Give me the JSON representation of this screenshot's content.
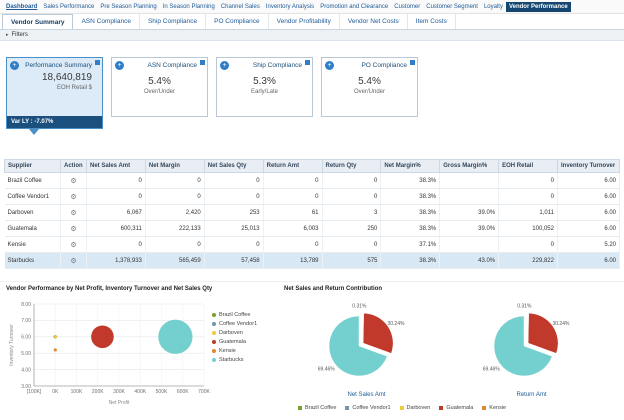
{
  "icons": {
    "filters_arrow": "▸",
    "tile_badge": "+",
    "gear": "⚙"
  },
  "top_nav": {
    "items": [
      {
        "label": "Dashboard",
        "underlined": true
      },
      {
        "label": "Sales Performance"
      },
      {
        "label": "Pre Season Planning"
      },
      {
        "label": "In Season Planning"
      },
      {
        "label": "Channel Sales"
      },
      {
        "label": "Inventory Analysis"
      },
      {
        "label": "Promotion and Clearance"
      },
      {
        "label": "Customer"
      },
      {
        "label": "Customer Segment"
      },
      {
        "label": "Loyalty"
      },
      {
        "label": "Vendor Performance",
        "selected": true
      }
    ]
  },
  "tabs": {
    "items": [
      {
        "label": "Vendor Summary",
        "active": true
      },
      {
        "label": "ASN Compliance"
      },
      {
        "label": "Ship Compliance"
      },
      {
        "label": "PO Compliance"
      },
      {
        "label": "Vendor Profitability"
      },
      {
        "label": "Vendor Net Costs"
      },
      {
        "label": "Item Costs"
      }
    ]
  },
  "filters": {
    "label": "Filters"
  },
  "kpi_tiles": [
    {
      "title": "Performance Summary",
      "value": "18,640,819",
      "subtitle": "EOH Retail $",
      "footer": "Var LY : -7.07%",
      "selected": true
    },
    {
      "title": "ASN Compliance",
      "value": "5.4%",
      "subtitle": "Over/Under"
    },
    {
      "title": "Ship Compliance",
      "value": "5.3%",
      "subtitle": "Early/Late"
    },
    {
      "title": "PO Compliance",
      "value": "5.4%",
      "subtitle": "Over/Under"
    }
  ],
  "table": {
    "columns": [
      "Supplier",
      "Action",
      "Net Sales Amt",
      "Net Margin",
      "Net Sales Qty",
      "Return Amt",
      "Return Qty",
      "Net Margin%",
      "Gross Margin%",
      "EOH Retail",
      "Inventory Turnover"
    ],
    "rows": [
      {
        "supplier": "Brazil Coffee",
        "cells": [
          "0",
          "0",
          "0",
          "0",
          "0",
          "38.3%",
          "",
          "0",
          "6.00"
        ]
      },
      {
        "supplier": "Coffee Vendor1",
        "cells": [
          "0",
          "0",
          "0",
          "0",
          "0",
          "38.3%",
          "",
          "0",
          "6.00"
        ]
      },
      {
        "supplier": "Darboven",
        "cells": [
          "6,067",
          "2,420",
          "253",
          "61",
          "3",
          "38.3%",
          "39.0%",
          "1,011",
          "6.00"
        ]
      },
      {
        "supplier": "Guatemala",
        "cells": [
          "600,311",
          "222,133",
          "25,013",
          "6,003",
          "250",
          "38.3%",
          "39.0%",
          "100,052",
          "6.00"
        ]
      },
      {
        "supplier": "Kensie",
        "cells": [
          "0",
          "0",
          "0",
          "0",
          "0",
          "37.1%",
          "",
          "0",
          "5.20"
        ]
      },
      {
        "supplier": "Starbucks",
        "cells": [
          "1,378,933",
          "565,459",
          "57,458",
          "13,789",
          "575",
          "38.3%",
          "43.0%",
          "229,822",
          "6.00"
        ],
        "selected": true
      }
    ]
  },
  "chart_data": [
    {
      "type": "scatter",
      "title": "Vendor Performance by Net Profit, Inventory Turnover and Net Sales Qty",
      "xlabel": "Net Profit",
      "ylabel": "Inventory Turnover",
      "xlim": [
        -100000,
        700000
      ],
      "ylim": [
        3,
        8
      ],
      "x_ticks": [
        "[100K]",
        "0K",
        "100K",
        "200K",
        "300K",
        "400K",
        "500K",
        "600K",
        "700K"
      ],
      "x_tick_values": [
        -100000,
        0,
        100000,
        200000,
        300000,
        400000,
        500000,
        600000,
        700000
      ],
      "y_ticks": [
        "3.00",
        "4.00",
        "5.00",
        "6.00",
        "7.00",
        "8.00"
      ],
      "grid": true,
      "legend_position": "right",
      "series": [
        {
          "name": "Brazil Coffee",
          "color": "#7aa12f",
          "x": 0,
          "y": 6.0,
          "size": 0
        },
        {
          "name": "Coffee Vendor1",
          "color": "#7295ae",
          "x": 0,
          "y": 6.0,
          "size": 0
        },
        {
          "name": "Darboven",
          "color": "#efc93f",
          "x": 2420,
          "y": 6.0,
          "size": 253
        },
        {
          "name": "Guatemala",
          "color": "#c0392b",
          "x": 222133,
          "y": 6.0,
          "size": 25013
        },
        {
          "name": "Kensie",
          "color": "#e2892f",
          "x": 0,
          "y": 5.2,
          "size": 0
        },
        {
          "name": "Starbucks",
          "color": "#74cfcf",
          "x": 565459,
          "y": 6.0,
          "size": 57458
        }
      ]
    },
    {
      "type": "pie",
      "title": "Net Sales and Return Contribution",
      "legend_position": "bottom",
      "pies": [
        {
          "label": "Net Sales Amt",
          "slices": [
            {
              "name": "Darboven",
              "value": 0.31,
              "pct_label": "0.31%",
              "color": "#efc93f"
            },
            {
              "name": "Guatemala",
              "value": 30.24,
              "pct_label": "30.24%",
              "color": "#c0392b",
              "exploded": true
            },
            {
              "name": "Starbucks",
              "value": 69.46,
              "pct_label": "69.46%",
              "color": "#74cfcf"
            }
          ]
        },
        {
          "label": "Return Amt",
          "slices": [
            {
              "name": "Darboven",
              "value": 0.31,
              "pct_label": "0.31%",
              "color": "#efc93f"
            },
            {
              "name": "Guatemala",
              "value": 30.24,
              "pct_label": "30.24%",
              "color": "#c0392b",
              "exploded": true
            },
            {
              "name": "Starbucks",
              "value": 69.46,
              "pct_label": "69.46%",
              "color": "#74cfcf"
            }
          ]
        }
      ],
      "legend": [
        {
          "name": "Brazil Coffee",
          "color": "#7aa12f"
        },
        {
          "name": "Coffee Vendor1",
          "color": "#7295ae"
        },
        {
          "name": "Darboven",
          "color": "#efc93f"
        },
        {
          "name": "Guatemala",
          "color": "#c0392b"
        },
        {
          "name": "Kensie",
          "color": "#e2892f"
        }
      ]
    }
  ]
}
